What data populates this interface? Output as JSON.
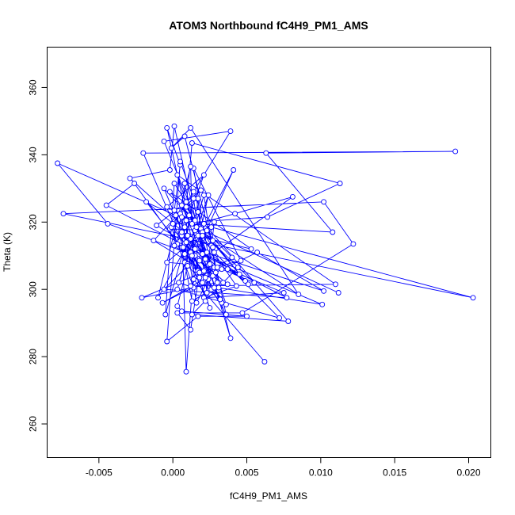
{
  "chart_data": {
    "type": "scatter",
    "title": "ATOM3 Northbound fC4H9_PM1_AMS",
    "xlabel": "fC4H9_PM1_AMS",
    "ylabel": "Theta (K)",
    "xlim": [
      -0.0085,
      0.0215
    ],
    "ylim": [
      250,
      372
    ],
    "xticks": [
      -0.005,
      0.0,
      0.005,
      0.01,
      0.015,
      0.02
    ],
    "xtick_labels": [
      "-0.005",
      "0.000",
      "0.005",
      "0.010",
      "0.015",
      "0.020"
    ],
    "yticks": [
      260,
      280,
      300,
      320,
      340,
      360
    ],
    "ytick_labels": [
      "260",
      "280",
      "300",
      "320",
      "340",
      "360"
    ],
    "grid": false,
    "series_color": "#0000ff",
    "mode": "lines+markers",
    "points": [
      [
        0.0062,
        278.5
      ],
      [
        0.0014,
        303.0
      ],
      [
        0.0023,
        317.5
      ],
      [
        -0.0002,
        318.0
      ],
      [
        0.0011,
        322.0
      ],
      [
        0.0008,
        308.0
      ],
      [
        0.0033,
        296.0
      ],
      [
        0.0039,
        285.5
      ],
      [
        0.0015,
        320.0
      ],
      [
        -0.0004,
        324.5
      ],
      [
        0.0021,
        334.0
      ],
      [
        0.0006,
        316.0
      ],
      [
        0.0016,
        312.0
      ],
      [
        0.0024,
        328.0
      ],
      [
        0.0004,
        302.0
      ],
      [
        0.0014,
        300.5
      ],
      [
        -0.0001,
        318.5
      ],
      [
        0.0027,
        304.0
      ],
      [
        0.0018,
        308.5
      ],
      [
        0.0037,
        301.5
      ],
      [
        0.0012,
        311.0
      ],
      [
        0.0032,
        297.0
      ],
      [
        0.0006,
        325.0
      ],
      [
        0.0043,
        301.0
      ],
      [
        0.0021,
        297.5
      ],
      [
        0.0075,
        299.0
      ],
      [
        0.0037,
        306.0
      ],
      [
        0.0049,
        302.5
      ],
      [
        0.0019,
        318.0
      ],
      [
        0.0016,
        327.0
      ],
      [
        0.0005,
        322.5
      ],
      [
        0.0027,
        314.5
      ],
      [
        0.0045,
        304.5
      ],
      [
        -0.0011,
        319.0
      ],
      [
        0.0019,
        329.5
      ],
      [
        -0.0013,
        314.5
      ],
      [
        0.0034,
        302.0
      ],
      [
        0.0044,
        306.5
      ],
      [
        0.0013,
        292.5
      ],
      [
        0.0078,
        290.5
      ],
      [
        0.0021,
        319.5
      ],
      [
        0.0002,
        322.0
      ],
      [
        -0.0078,
        337.5
      ],
      [
        -0.0044,
        319.5
      ],
      [
        0.0015,
        310.0
      ],
      [
        0.0041,
        335.5
      ],
      [
        0.0012,
        311.0
      ],
      [
        0.0036,
        292.5
      ],
      [
        0.0026,
        313.0
      ],
      [
        0.0012,
        315.0
      ],
      [
        0.0017,
        305.5
      ],
      [
        0.0024,
        303.0
      ],
      [
        0.0016,
        296.0
      ],
      [
        0.0006,
        321.5
      ],
      [
        0.0009,
        275.5
      ],
      [
        0.0015,
        312.0
      ],
      [
        0.0102,
        299.5
      ],
      [
        0.0057,
        311.0
      ],
      [
        0.0022,
        303.5
      ],
      [
        0.0026,
        300.0
      ],
      [
        0.0001,
        348.5
      ],
      [
        -0.0002,
        335.5
      ],
      [
        -0.0029,
        333.0
      ],
      [
        0.0008,
        318.5
      ],
      [
        0.0042,
        322.5
      ],
      [
        0.0081,
        327.5
      ],
      [
        0.0028,
        311.0
      ],
      [
        0.0019,
        305.0
      ],
      [
        0.0012,
        301.0
      ],
      [
        0.011,
        301.5
      ],
      [
        0.0003,
        334.0
      ],
      [
        0.0016,
        316.5
      ],
      [
        0.0029,
        305.0
      ],
      [
        0.0036,
        295.5
      ],
      [
        -0.0018,
        326.0
      ],
      [
        0.0051,
        301.5
      ],
      [
        -0.0002,
        329.0
      ],
      [
        0.0053,
        312.0
      ],
      [
        0.0006,
        317.0
      ],
      [
        0.002,
        310.5
      ],
      [
        0.0101,
        295.5
      ],
      [
        0.0031,
        300.5
      ],
      [
        0.0015,
        320.0
      ],
      [
        -0.0006,
        330.0
      ],
      [
        0.0013,
        310.0
      ],
      [
        0.0017,
        327.0
      ],
      [
        0.0023,
        299.0
      ],
      [
        0.0026,
        318.5
      ],
      [
        0.0203,
        297.5
      ],
      [
        -0.0074,
        322.5
      ],
      [
        0.0102,
        326.0
      ],
      [
        0.0122,
        313.5
      ],
      [
        0.0047,
        293.0
      ],
      [
        0.0003,
        293.0
      ],
      [
        0.0012,
        288.0
      ],
      [
        0.0018,
        305.0
      ],
      [
        0.0006,
        312.5
      ],
      [
        0.0013,
        296.5
      ],
      [
        0.0028,
        300.5
      ],
      [
        0.0023,
        311.0
      ],
      [
        0.0009,
        326.0
      ],
      [
        0.0001,
        331.5
      ],
      [
        -0.0005,
        292.5
      ],
      [
        0.001,
        316.0
      ],
      [
        0.0022,
        309.0
      ],
      [
        0.0015,
        320.5
      ],
      [
        0.004,
        309.5
      ],
      [
        0.0018,
        303.5
      ],
      [
        0.0009,
        314.0
      ],
      [
        0.0025,
        307.5
      ],
      [
        0.0014,
        336.0
      ],
      [
        0.0046,
        308.5
      ],
      [
        0.0028,
        306.5
      ],
      [
        -0.0021,
        297.5
      ],
      [
        0.003,
        302.0
      ],
      [
        0.0021,
        328.0
      ],
      [
        0.0003,
        300.0
      ],
      [
        0.0072,
        291.5
      ],
      [
        0.0017,
        316.0
      ],
      [
        -0.0004,
        308.0
      ],
      [
        0.001,
        307.5
      ],
      [
        0.0009,
        320.5
      ],
      [
        0.001,
        316.0
      ],
      [
        0.003,
        306.5
      ],
      [
        0.0003,
        313.5
      ],
      [
        0.0008,
        331.5
      ],
      [
        0.0015,
        317.5
      ],
      [
        -0.001,
        297.5
      ],
      [
        0.0012,
        336.5
      ],
      [
        0.0013,
        319.5
      ],
      [
        0.0108,
        317.0
      ],
      [
        0.0063,
        340.5
      ],
      [
        0.0191,
        341.0
      ],
      [
        -0.002,
        340.5
      ],
      [
        0.0025,
        294.5
      ],
      [
        0.0001,
        323.5
      ],
      [
        0.0005,
        337.0
      ],
      [
        -0.0004,
        348.0
      ],
      [
        0.0022,
        296.5
      ],
      [
        0.0028,
        320.0
      ],
      [
        0.002,
        317.0
      ],
      [
        0.0085,
        298.5
      ],
      [
        0.0012,
        348.0
      ],
      [
        -0.0001,
        342.0
      ],
      [
        0.0008,
        345.5
      ],
      [
        0.0027,
        312.5
      ],
      [
        0.0009,
        324.5
      ],
      [
        0.0013,
        343.5
      ],
      [
        0.0113,
        331.5
      ],
      [
        0.0064,
        321.5
      ],
      [
        0.0,
        319.5
      ],
      [
        0.0014,
        329.0
      ],
      [
        0.0039,
        347.0
      ],
      [
        -0.0006,
        344.0
      ],
      [
        0.002,
        316.0
      ],
      [
        0.0017,
        323.0
      ],
      [
        0.0001,
        313.0
      ],
      [
        0.0008,
        310.5
      ],
      [
        -0.0026,
        331.5
      ],
      [
        -0.0045,
        325.0
      ],
      [
        0.0077,
        297.5
      ],
      [
        -0.0006,
        300.0
      ],
      [
        0.001,
        307.0
      ],
      [
        0.0003,
        295.0
      ],
      [
        0.0006,
        293.5
      ],
      [
        0.005,
        292.0
      ],
      [
        0.0017,
        292.0
      ],
      [
        -0.0004,
        284.5
      ],
      [
        0.0005,
        338.0
      ],
      [
        0.0014,
        327.0
      ],
      [
        0.0021,
        305.5
      ],
      [
        0.0007,
        312.5
      ],
      [
        0.002,
        302.0
      ],
      [
        -0.0007,
        296.0
      ],
      [
        0.0033,
        306.0
      ],
      [
        0.0055,
        302.0
      ],
      [
        0.0016,
        318.5
      ],
      [
        0.0112,
        299.0
      ]
    ]
  }
}
